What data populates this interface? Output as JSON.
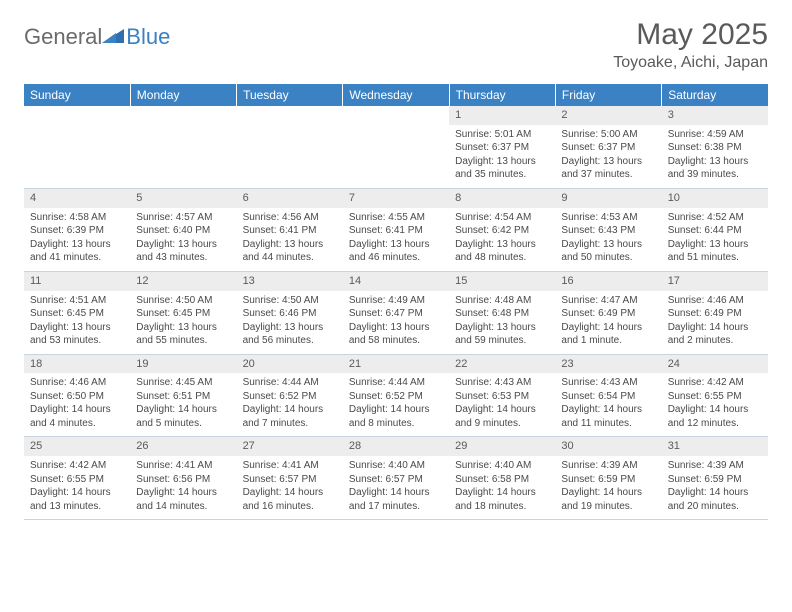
{
  "logo": {
    "general": "General",
    "blue": "Blue"
  },
  "title": "May 2025",
  "location": "Toyoake, Aichi, Japan",
  "colors": {
    "header_bg": "#3b82c4",
    "header_text": "#ffffff",
    "daynum_bg": "#ededed",
    "text": "#4a4a4a",
    "title_text": "#5a5a5a",
    "logo_gray": "#6b6b6b",
    "logo_blue": "#3b7fc4",
    "grid_line": "#c8d4e0"
  },
  "day_labels": [
    "Sunday",
    "Monday",
    "Tuesday",
    "Wednesday",
    "Thursday",
    "Friday",
    "Saturday"
  ],
  "weeks": [
    [
      {
        "empty": true
      },
      {
        "empty": true
      },
      {
        "empty": true
      },
      {
        "empty": true
      },
      {
        "num": "1",
        "sunrise": "Sunrise: 5:01 AM",
        "sunset": "Sunset: 6:37 PM",
        "daylight": "Daylight: 13 hours and 35 minutes."
      },
      {
        "num": "2",
        "sunrise": "Sunrise: 5:00 AM",
        "sunset": "Sunset: 6:37 PM",
        "daylight": "Daylight: 13 hours and 37 minutes."
      },
      {
        "num": "3",
        "sunrise": "Sunrise: 4:59 AM",
        "sunset": "Sunset: 6:38 PM",
        "daylight": "Daylight: 13 hours and 39 minutes."
      }
    ],
    [
      {
        "num": "4",
        "sunrise": "Sunrise: 4:58 AM",
        "sunset": "Sunset: 6:39 PM",
        "daylight": "Daylight: 13 hours and 41 minutes."
      },
      {
        "num": "5",
        "sunrise": "Sunrise: 4:57 AM",
        "sunset": "Sunset: 6:40 PM",
        "daylight": "Daylight: 13 hours and 43 minutes."
      },
      {
        "num": "6",
        "sunrise": "Sunrise: 4:56 AM",
        "sunset": "Sunset: 6:41 PM",
        "daylight": "Daylight: 13 hours and 44 minutes."
      },
      {
        "num": "7",
        "sunrise": "Sunrise: 4:55 AM",
        "sunset": "Sunset: 6:41 PM",
        "daylight": "Daylight: 13 hours and 46 minutes."
      },
      {
        "num": "8",
        "sunrise": "Sunrise: 4:54 AM",
        "sunset": "Sunset: 6:42 PM",
        "daylight": "Daylight: 13 hours and 48 minutes."
      },
      {
        "num": "9",
        "sunrise": "Sunrise: 4:53 AM",
        "sunset": "Sunset: 6:43 PM",
        "daylight": "Daylight: 13 hours and 50 minutes."
      },
      {
        "num": "10",
        "sunrise": "Sunrise: 4:52 AM",
        "sunset": "Sunset: 6:44 PM",
        "daylight": "Daylight: 13 hours and 51 minutes."
      }
    ],
    [
      {
        "num": "11",
        "sunrise": "Sunrise: 4:51 AM",
        "sunset": "Sunset: 6:45 PM",
        "daylight": "Daylight: 13 hours and 53 minutes."
      },
      {
        "num": "12",
        "sunrise": "Sunrise: 4:50 AM",
        "sunset": "Sunset: 6:45 PM",
        "daylight": "Daylight: 13 hours and 55 minutes."
      },
      {
        "num": "13",
        "sunrise": "Sunrise: 4:50 AM",
        "sunset": "Sunset: 6:46 PM",
        "daylight": "Daylight: 13 hours and 56 minutes."
      },
      {
        "num": "14",
        "sunrise": "Sunrise: 4:49 AM",
        "sunset": "Sunset: 6:47 PM",
        "daylight": "Daylight: 13 hours and 58 minutes."
      },
      {
        "num": "15",
        "sunrise": "Sunrise: 4:48 AM",
        "sunset": "Sunset: 6:48 PM",
        "daylight": "Daylight: 13 hours and 59 minutes."
      },
      {
        "num": "16",
        "sunrise": "Sunrise: 4:47 AM",
        "sunset": "Sunset: 6:49 PM",
        "daylight": "Daylight: 14 hours and 1 minute."
      },
      {
        "num": "17",
        "sunrise": "Sunrise: 4:46 AM",
        "sunset": "Sunset: 6:49 PM",
        "daylight": "Daylight: 14 hours and 2 minutes."
      }
    ],
    [
      {
        "num": "18",
        "sunrise": "Sunrise: 4:46 AM",
        "sunset": "Sunset: 6:50 PM",
        "daylight": "Daylight: 14 hours and 4 minutes."
      },
      {
        "num": "19",
        "sunrise": "Sunrise: 4:45 AM",
        "sunset": "Sunset: 6:51 PM",
        "daylight": "Daylight: 14 hours and 5 minutes."
      },
      {
        "num": "20",
        "sunrise": "Sunrise: 4:44 AM",
        "sunset": "Sunset: 6:52 PM",
        "daylight": "Daylight: 14 hours and 7 minutes."
      },
      {
        "num": "21",
        "sunrise": "Sunrise: 4:44 AM",
        "sunset": "Sunset: 6:52 PM",
        "daylight": "Daylight: 14 hours and 8 minutes."
      },
      {
        "num": "22",
        "sunrise": "Sunrise: 4:43 AM",
        "sunset": "Sunset: 6:53 PM",
        "daylight": "Daylight: 14 hours and 9 minutes."
      },
      {
        "num": "23",
        "sunrise": "Sunrise: 4:43 AM",
        "sunset": "Sunset: 6:54 PM",
        "daylight": "Daylight: 14 hours and 11 minutes."
      },
      {
        "num": "24",
        "sunrise": "Sunrise: 4:42 AM",
        "sunset": "Sunset: 6:55 PM",
        "daylight": "Daylight: 14 hours and 12 minutes."
      }
    ],
    [
      {
        "num": "25",
        "sunrise": "Sunrise: 4:42 AM",
        "sunset": "Sunset: 6:55 PM",
        "daylight": "Daylight: 14 hours and 13 minutes."
      },
      {
        "num": "26",
        "sunrise": "Sunrise: 4:41 AM",
        "sunset": "Sunset: 6:56 PM",
        "daylight": "Daylight: 14 hours and 14 minutes."
      },
      {
        "num": "27",
        "sunrise": "Sunrise: 4:41 AM",
        "sunset": "Sunset: 6:57 PM",
        "daylight": "Daylight: 14 hours and 16 minutes."
      },
      {
        "num": "28",
        "sunrise": "Sunrise: 4:40 AM",
        "sunset": "Sunset: 6:57 PM",
        "daylight": "Daylight: 14 hours and 17 minutes."
      },
      {
        "num": "29",
        "sunrise": "Sunrise: 4:40 AM",
        "sunset": "Sunset: 6:58 PM",
        "daylight": "Daylight: 14 hours and 18 minutes."
      },
      {
        "num": "30",
        "sunrise": "Sunrise: 4:39 AM",
        "sunset": "Sunset: 6:59 PM",
        "daylight": "Daylight: 14 hours and 19 minutes."
      },
      {
        "num": "31",
        "sunrise": "Sunrise: 4:39 AM",
        "sunset": "Sunset: 6:59 PM",
        "daylight": "Daylight: 14 hours and 20 minutes."
      }
    ]
  ]
}
